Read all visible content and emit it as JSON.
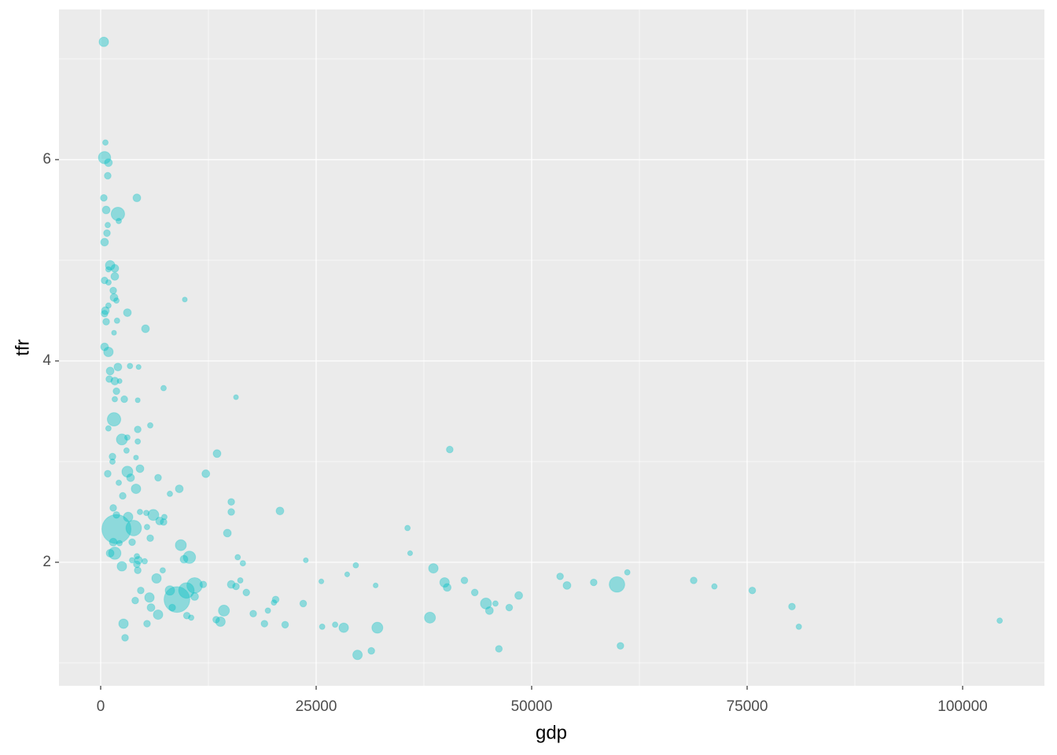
{
  "chart_data": {
    "type": "scatter",
    "x_label": "gdp",
    "y_label": "tfr",
    "color": "#00BFC4",
    "alpha": 0.4,
    "grid": true,
    "xlim": [
      -4836,
      109489
    ],
    "ylim": [
      0.773,
      7.492
    ],
    "xticks": [
      0,
      25000,
      50000,
      75000,
      100000
    ],
    "yticks": [
      2,
      4,
      6
    ],
    "xminor": [
      12500,
      37500,
      62500,
      87500
    ],
    "yminor": [
      1,
      3,
      5,
      7
    ],
    "x": [
      365,
      550,
      450,
      900,
      820,
      4200,
      365,
      640,
      2000,
      2100,
      820,
      730,
      450,
      1100,
      1640,
      900,
      1640,
      450,
      910,
      1460,
      1550,
      1830,
      9760,
      900,
      550,
      450,
      3100,
      640,
      1900,
      5200,
      1550,
      450,
      900,
      2000,
      3400,
      4400,
      1100,
      1000,
      1640,
      2200,
      1830,
      7300,
      1640,
      2740,
      4300,
      15700,
      1550,
      5750,
      900,
      4300,
      2460,
      3100,
      4300,
      3000,
      40500,
      13500,
      1370,
      4100,
      1370,
      4560,
      3100,
      820,
      12200,
      3470,
      6660,
      2100,
      4100,
      9120,
      8030,
      2560,
      15150,
      1460,
      20800,
      15150,
      4560,
      5300,
      6110,
      1830,
      3190,
      7390,
      6840,
      7300,
      5380,
      14700,
      1830,
      3830,
      5750,
      3650,
      1460,
      2190,
      9300,
      35600,
      35900,
      1100,
      1640,
      4200,
      10300,
      9670,
      15900,
      4380,
      3650,
      23800,
      16500,
      5110,
      4200,
      2460,
      29600,
      38600,
      4300,
      7200,
      28600,
      61100,
      53300,
      68800,
      42200,
      6480,
      39900,
      57200,
      25600,
      54100,
      71200,
      59900,
      11900,
      31900,
      10900,
      15150,
      16200,
      40200,
      15700,
      9950,
      8030,
      16900,
      4650,
      43400,
      75600,
      8850,
      10900,
      20300,
      5660,
      48500,
      20100,
      4010,
      44700,
      45800,
      23500,
      5840,
      80200,
      47400,
      8300,
      14300,
      45100,
      19400,
      17700,
      6660,
      38200,
      10000,
      10500,
      13400,
      13900,
      104300,
      2650,
      19000,
      21400,
      5380,
      27200,
      32100,
      28200,
      25700,
      81000,
      2830,
      60300,
      46200,
      31400,
      29800
    ],
    "y": [
      7.17,
      6.17,
      6.02,
      5.97,
      5.84,
      5.62,
      5.62,
      5.5,
      5.46,
      5.39,
      5.35,
      5.27,
      5.18,
      4.95,
      4.92,
      4.91,
      4.84,
      4.8,
      4.78,
      4.7,
      4.63,
      4.6,
      4.61,
      4.55,
      4.5,
      4.47,
      4.48,
      4.39,
      4.4,
      4.32,
      4.28,
      4.14,
      4.09,
      3.94,
      3.95,
      3.94,
      3.9,
      3.82,
      3.8,
      3.8,
      3.7,
      3.73,
      3.62,
      3.62,
      3.61,
      3.64,
      3.42,
      3.36,
      3.33,
      3.32,
      3.22,
      3.24,
      3.2,
      3.11,
      3.12,
      3.08,
      3.05,
      3.04,
      3.0,
      2.93,
      2.9,
      2.88,
      2.88,
      2.84,
      2.84,
      2.79,
      2.73,
      2.73,
      2.68,
      2.66,
      2.6,
      2.54,
      2.51,
      2.5,
      2.5,
      2.49,
      2.47,
      2.47,
      2.45,
      2.45,
      2.41,
      2.4,
      2.35,
      2.29,
      2.33,
      2.34,
      2.24,
      2.2,
      2.2,
      2.19,
      2.17,
      2.34,
      2.09,
      2.09,
      2.09,
      2.06,
      2.05,
      2.03,
      2.05,
      2.02,
      2.02,
      2.02,
      1.99,
      2.01,
      1.98,
      1.96,
      1.97,
      1.94,
      1.92,
      1.92,
      1.88,
      1.9,
      1.86,
      1.82,
      1.82,
      1.84,
      1.8,
      1.8,
      1.81,
      1.77,
      1.76,
      1.78,
      1.78,
      1.77,
      1.77,
      1.78,
      1.82,
      1.75,
      1.76,
      1.72,
      1.72,
      1.7,
      1.72,
      1.7,
      1.72,
      1.63,
      1.66,
      1.63,
      1.65,
      1.67,
      1.6,
      1.62,
      1.59,
      1.59,
      1.59,
      1.55,
      1.56,
      1.55,
      1.55,
      1.52,
      1.52,
      1.52,
      1.49,
      1.48,
      1.45,
      1.47,
      1.45,
      1.43,
      1.41,
      1.42,
      1.39,
      1.39,
      1.38,
      1.39,
      1.38,
      1.35,
      1.35,
      1.36,
      1.36,
      1.25,
      1.17,
      1.14,
      1.12,
      1.08
    ],
    "sizes": [
      3,
      1,
      5,
      2,
      1.5,
      2,
      1.5,
      2,
      6,
      1,
      1,
      1.5,
      2,
      3,
      2,
      1,
      2,
      1.5,
      1,
      1.5,
      2,
      1,
      0.8,
      1,
      2,
      1.5,
      2,
      1.5,
      1,
      2,
      0.8,
      2,
      3,
      2,
      1,
      0.8,
      2,
      1.5,
      2,
      0.8,
      1.5,
      1,
      1,
      1.5,
      0.8,
      0.8,
      6,
      1,
      1,
      1.5,
      4,
      1,
      1,
      1,
      1.5,
      2,
      1.5,
      0.8,
      1,
      2,
      4,
      1.5,
      2,
      2,
      1.5,
      1,
      3,
      2,
      1,
      1.5,
      1.5,
      1.5,
      2,
      1.5,
      1,
      1,
      4,
      1.5,
      3,
      1,
      2,
      1.5,
      1,
      2,
      28,
      8,
      1.5,
      1.5,
      2,
      1,
      4,
      1,
      0.8,
      2,
      5,
      1,
      5,
      2,
      1,
      2,
      1,
      0.8,
      1,
      1,
      1.5,
      3,
      1,
      3,
      1.5,
      1,
      0.8,
      1,
      1.5,
      1.5,
      1.5,
      3,
      3,
      1.5,
      0.8,
      2,
      1,
      8,
      1.5,
      0.8,
      8,
      2,
      1,
      2,
      1.5,
      8,
      3,
      1.5,
      1.5,
      1.5,
      1.5,
      22,
      2,
      1.5,
      3,
      2,
      1,
      1.5,
      4,
      1,
      1.5,
      2,
      1.5,
      1.5,
      1.5,
      4,
      2,
      1,
      1.5,
      3,
      4,
      1.5,
      1,
      1.5,
      3,
      1,
      3,
      1.5,
      1.5,
      1.5,
      1,
      4,
      3,
      1,
      1,
      1.5,
      1.5,
      1.5,
      1.5,
      3
    ]
  }
}
